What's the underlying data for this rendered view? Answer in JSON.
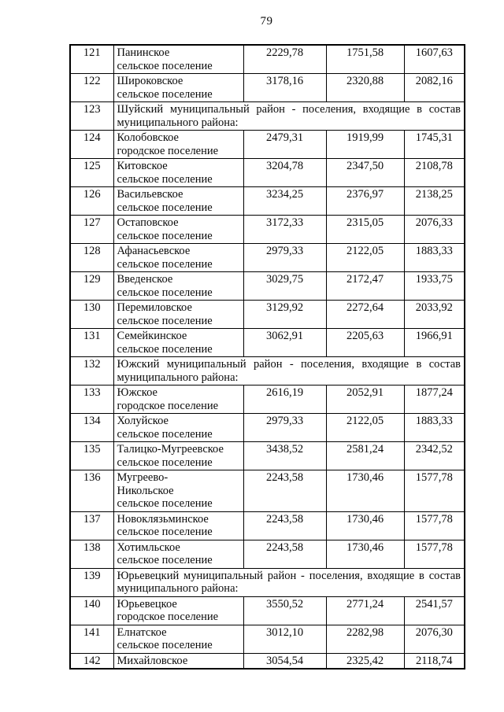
{
  "page": {
    "number": "79"
  },
  "table": {
    "rows": [
      {
        "num": "121",
        "name_lines": [
          "Панинское",
          "сельское поселение"
        ],
        "values": [
          "2229,78",
          "1751,58",
          "1607,63"
        ]
      },
      {
        "num": "122",
        "name_lines": [
          "Широковское",
          "сельское поселение"
        ],
        "values": [
          "3178,16",
          "2320,88",
          "2082,16"
        ]
      },
      {
        "num": "123",
        "section": "Шуйский муниципальный район - поселения, входящие в состав муниципального района:"
      },
      {
        "num": "124",
        "name_lines": [
          "Колобовское",
          "городское поселение"
        ],
        "values": [
          "2479,31",
          "1919,99",
          "1745,31"
        ]
      },
      {
        "num": "125",
        "name_lines": [
          "Китовское",
          "сельское поселение"
        ],
        "values": [
          "3204,78",
          "2347,50",
          "2108,78"
        ]
      },
      {
        "num": "126",
        "name_lines": [
          "Васильевское",
          "сельское поселение"
        ],
        "values": [
          "3234,25",
          "2376,97",
          "2138,25"
        ]
      },
      {
        "num": "127",
        "name_lines": [
          "Остаповское",
          "сельское поселение"
        ],
        "values": [
          "3172,33",
          "2315,05",
          "2076,33"
        ]
      },
      {
        "num": "128",
        "name_lines": [
          "Афанасьевское",
          "сельское поселение"
        ],
        "values": [
          "2979,33",
          "2122,05",
          "1883,33"
        ]
      },
      {
        "num": "129",
        "name_lines": [
          "Введенское",
          "сельское поселение"
        ],
        "values": [
          "3029,75",
          "2172,47",
          "1933,75"
        ]
      },
      {
        "num": "130",
        "name_lines": [
          "Перемиловское",
          "сельское поселение"
        ],
        "values": [
          "3129,92",
          "2272,64",
          "2033,92"
        ]
      },
      {
        "num": "131",
        "name_lines": [
          "Семейкинское",
          "сельское поселение"
        ],
        "values": [
          "3062,91",
          "2205,63",
          "1966,91"
        ]
      },
      {
        "num": "132",
        "section": "Южский муниципальный район - поселения, входящие в состав муниципального района:"
      },
      {
        "num": "133",
        "name_lines": [
          "Южское",
          "городское поселение"
        ],
        "values": [
          "2616,19",
          "2052,91",
          "1877,24"
        ]
      },
      {
        "num": "134",
        "name_lines": [
          "Холуйское",
          "сельское поселение"
        ],
        "values": [
          "2979,33",
          "2122,05",
          "1883,33"
        ]
      },
      {
        "num": "135",
        "name_lines": [
          "Талицко-Мугреевское",
          "сельское поселение"
        ],
        "values": [
          "3438,52",
          "2581,24",
          "2342,52"
        ]
      },
      {
        "num": "136",
        "name_lines": [
          "Мугреево-",
          "Никольское",
          "сельское поселение"
        ],
        "values": [
          "2243,58",
          "1730,46",
          "1577,78"
        ]
      },
      {
        "num": "137",
        "name_lines": [
          "Новоклязьминское",
          "сельское поселение"
        ],
        "values": [
          "2243,58",
          "1730,46",
          "1577,78"
        ]
      },
      {
        "num": "138",
        "name_lines": [
          "Хотимльское",
          "сельское поселение"
        ],
        "values": [
          "2243,58",
          "1730,46",
          "1577,78"
        ]
      },
      {
        "num": "139",
        "section": "Юрьевецкий муниципальный район - поселения, входящие в состав муниципального района:"
      },
      {
        "num": "140",
        "name_lines": [
          "Юрьевецкое",
          "городское поселение"
        ],
        "values": [
          "3550,52",
          "2771,24",
          "2541,57"
        ]
      },
      {
        "num": "141",
        "name_lines": [
          "Елнатское",
          "сельское поселение"
        ],
        "values": [
          "3012,10",
          "2282,98",
          "2076,30"
        ]
      },
      {
        "num": "142",
        "name_lines": [
          "Михайловское"
        ],
        "values": [
          "3054,54",
          "2325,42",
          "2118,74"
        ]
      }
    ]
  }
}
